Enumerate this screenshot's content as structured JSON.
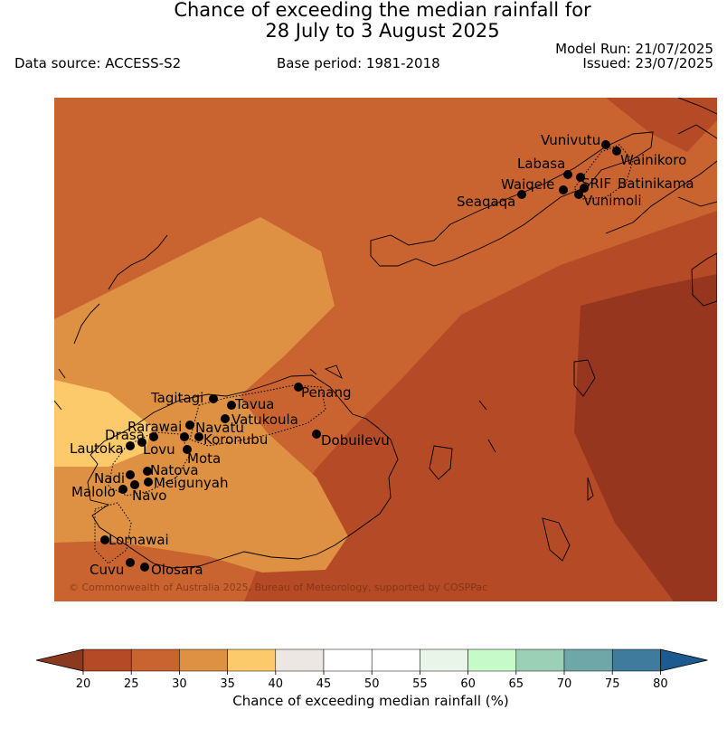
{
  "title": {
    "line1": "Chance of exceeding the median rainfall for",
    "line2": "28 July to 3 August 2025"
  },
  "info": {
    "data_source": "Data source: ACCESS-S2",
    "base_period": "Base period: 1981-2018",
    "model_run": "Model Run: 21/07/2025",
    "issued": "Issued: 23/07/2025"
  },
  "map": {
    "copyright": "© Commonwealth of Australia 2025, Bureau of Meteorology, supported by COSPPac",
    "zone_colors": {
      "c20_25": "#b44a26",
      "c25_30": "#c96430",
      "c30_35": "#de9142",
      "c35_40": "#fcc96b",
      "below20": "#97361f"
    },
    "stations": [
      {
        "name": "Vunivutu"
      },
      {
        "name": "Wainikoro"
      },
      {
        "name": "Labasa"
      },
      {
        "name": "SRIF"
      },
      {
        "name": "Batinikama"
      },
      {
        "name": "Waiqele"
      },
      {
        "name": "Vunimoli"
      },
      {
        "name": "Seaqaqa"
      },
      {
        "name": "Penang"
      },
      {
        "name": "Tagitagi"
      },
      {
        "name": "Tavua"
      },
      {
        "name": "Vatukoula"
      },
      {
        "name": "Rarawai"
      },
      {
        "name": "Navatu"
      },
      {
        "name": "Koronubu"
      },
      {
        "name": "Dobuilevu"
      },
      {
        "name": "Drasa"
      },
      {
        "name": "Lautoka"
      },
      {
        "name": "Lovu"
      },
      {
        "name": "Mota"
      },
      {
        "name": "Natova"
      },
      {
        "name": "Nadi"
      },
      {
        "name": "Meigunyah"
      },
      {
        "name": "Malolo"
      },
      {
        "name": "Navo"
      },
      {
        "name": "Lomawai"
      },
      {
        "name": "Cuvu"
      },
      {
        "name": "Olosara"
      }
    ]
  },
  "legend": {
    "title": "Chance of exceeding median rainfall (%)",
    "ticks": [
      "20",
      "25",
      "30",
      "35",
      "40",
      "45",
      "50",
      "55",
      "60",
      "65",
      "70",
      "75",
      "80"
    ],
    "colors": [
      "#b44a26",
      "#c96430",
      "#de9142",
      "#fcc96b",
      "#ece7e3",
      "#ffffff",
      "#ffffff",
      "#e9f5e9",
      "#c6fac8",
      "#9bd0b7",
      "#6fa6a8",
      "#3e7b9c"
    ],
    "under_color": "#8b3a20",
    "over_color": "#1c5a8f"
  }
}
